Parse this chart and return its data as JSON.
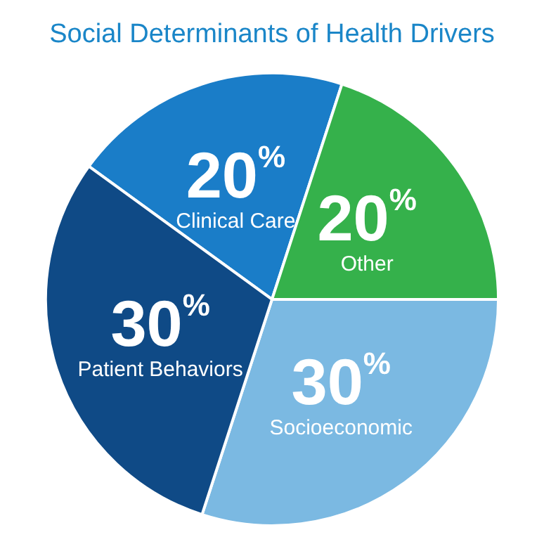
{
  "chart_data": {
    "type": "pie",
    "title": "Social Determinants of Health Drivers",
    "categories": [
      "Clinical Care",
      "Other",
      "Socioeconomic",
      "Patient Behaviors"
    ],
    "values": [
      20,
      20,
      30,
      30
    ],
    "colors": [
      "#1a7dc8",
      "#35b14b",
      "#7bb9e2",
      "#0f4a86"
    ],
    "value_labels": [
      "20$^{%}$",
      "20$^{%}$",
      "30$^{%}$",
      "30$^{%}$"
    ],
    "legend": false
  }
}
